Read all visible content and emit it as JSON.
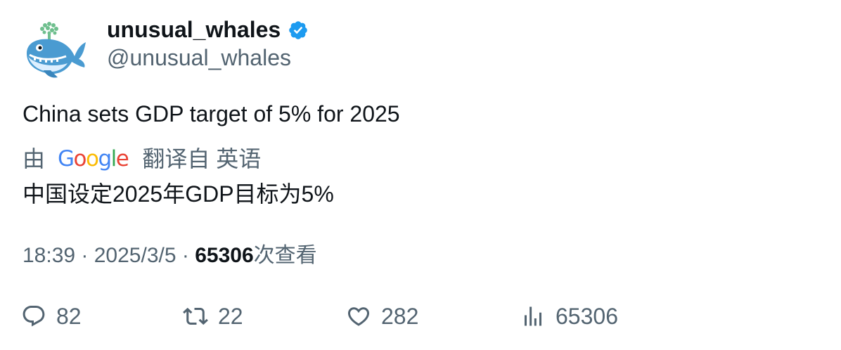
{
  "user": {
    "display_name": "unusual_whales",
    "handle": "@unusual_whales",
    "verified": true,
    "avatar_icon": "whale-icon"
  },
  "tweet": {
    "text": "China sets GDP target of 5% for 2025"
  },
  "translation": {
    "by_label": "由",
    "provider": "Google",
    "source_label": "翻译自 英语",
    "translated_text": "中国设定2025年GDP目标为5%"
  },
  "meta": {
    "time": "18:39",
    "separator": " · ",
    "date": "2025/3/5",
    "views_count": "65306",
    "views_label": "次查看"
  },
  "actions": {
    "replies": "82",
    "retweets": "22",
    "likes": "282",
    "views": "65306"
  },
  "colors": {
    "text_primary": "#0f1419",
    "text_secondary": "#536471",
    "verified_blue": "#1d9bf0"
  }
}
